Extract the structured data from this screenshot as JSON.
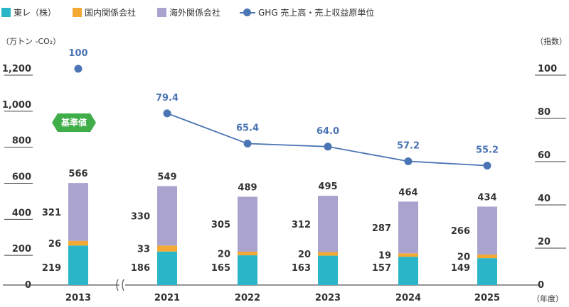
{
  "legend": [
    {
      "label": "東レ（株）",
      "color": "#2bb5c9",
      "kind": "box"
    },
    {
      "label": "国内関係会社",
      "color": "#f5a935",
      "kind": "box"
    },
    {
      "label": "海外関係会社",
      "color": "#a9a3ce",
      "kind": "box"
    },
    {
      "label": "GHG 売上高・売上収益原単位",
      "color": "#4a74b4",
      "kind": "line"
    }
  ],
  "left_unit": "（万トン -CO₂）",
  "right_unit": "（指数）",
  "x_unit": "（年度）",
  "badge": "基準値",
  "chart_data": {
    "type": "bar",
    "stacked": true,
    "categories": [
      "2013",
      "2021",
      "2022",
      "2023",
      "2024",
      "2025"
    ],
    "axis_break_between": [
      "2013",
      "2021"
    ],
    "series": [
      {
        "name": "東レ（株）",
        "color": "#2bb5c9",
        "values": [
          219,
          186,
          165,
          163,
          157,
          149
        ]
      },
      {
        "name": "国内関係会社",
        "color": "#f5a935",
        "values": [
          26,
          33,
          20,
          20,
          19,
          20
        ]
      },
      {
        "name": "海外関係会社",
        "color": "#a9a3ce",
        "values": [
          321,
          330,
          305,
          312,
          287,
          266
        ]
      }
    ],
    "totals": [
      566,
      549,
      489,
      495,
      464,
      434
    ],
    "line_series": {
      "name": "GHG 売上高・売上収益原単位",
      "color": "#4a74b4",
      "axis": "right",
      "values": [
        100,
        79.4,
        65.4,
        64.0,
        57.2,
        55.2
      ],
      "labels": [
        "100",
        "79.4",
        "65.4",
        "64.0",
        "57.2",
        "55.2"
      ]
    },
    "y_left": {
      "ticks": [
        "0",
        "200",
        "400",
        "600",
        "800",
        "1,000",
        "1,200"
      ],
      "tick_values": [
        0,
        200,
        400,
        600,
        800,
        1000,
        1200
      ],
      "ylim": [
        0,
        1200
      ]
    },
    "y_right": {
      "ticks": [
        "0",
        "20",
        "40",
        "60",
        "80",
        "100"
      ],
      "tick_values": [
        0,
        20,
        40,
        60,
        80,
        100
      ],
      "ylim": [
        0,
        100
      ]
    }
  }
}
